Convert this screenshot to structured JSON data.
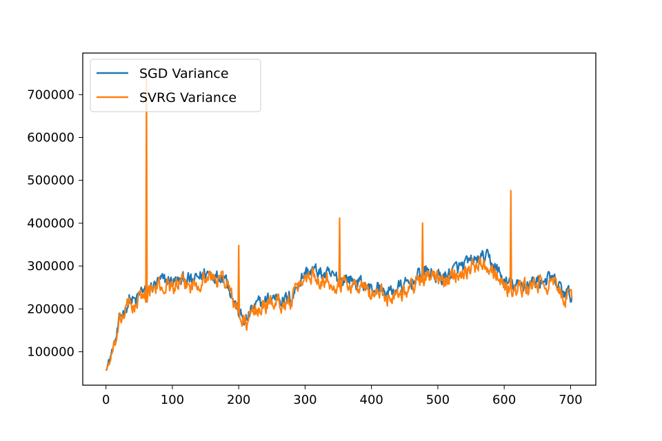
{
  "chart_data": {
    "type": "line",
    "title": "",
    "xlabel": "",
    "ylabel": "",
    "xlim": [
      -35,
      738
    ],
    "ylim": [
      22000,
      797000
    ],
    "xticks": [
      0,
      100,
      200,
      300,
      400,
      500,
      600,
      700
    ],
    "xtick_labels": [
      "0",
      "100",
      "200",
      "300",
      "400",
      "500",
      "600",
      "700"
    ],
    "yticks": [
      100000,
      200000,
      300000,
      400000,
      500000,
      600000,
      700000
    ],
    "ytick_labels": [
      "100000",
      "200000",
      "300000",
      "400000",
      "500000",
      "600000",
      "700000"
    ],
    "legend_position": "upper-left",
    "series": [
      {
        "name": "SGD Variance",
        "color": "#1f77b4",
        "anchors": [
          [
            0,
            62000
          ],
          [
            5,
            80000
          ],
          [
            10,
            105000
          ],
          [
            15,
            130000
          ],
          [
            20,
            170000
          ],
          [
            25,
            190000
          ],
          [
            30,
            205000
          ],
          [
            35,
            222000
          ],
          [
            40,
            220000
          ],
          [
            45,
            215000
          ],
          [
            50,
            232000
          ],
          [
            55,
            245000
          ],
          [
            62,
            240000
          ],
          [
            70,
            252000
          ],
          [
            80,
            262000
          ],
          [
            90,
            265000
          ],
          [
            100,
            266000
          ],
          [
            110,
            262000
          ],
          [
            120,
            270000
          ],
          [
            130,
            262000
          ],
          [
            140,
            275000
          ],
          [
            150,
            285000
          ],
          [
            160,
            282000
          ],
          [
            170,
            280000
          ],
          [
            178,
            282000
          ],
          [
            185,
            258000
          ],
          [
            190,
            232000
          ],
          [
            195,
            210000
          ],
          [
            200,
            192000
          ],
          [
            205,
            178000
          ],
          [
            212,
            172000
          ],
          [
            220,
            198000
          ],
          [
            230,
            210000
          ],
          [
            240,
            218000
          ],
          [
            250,
            225000
          ],
          [
            260,
            230000
          ],
          [
            270,
            220000
          ],
          [
            280,
            228000
          ],
          [
            290,
            260000
          ],
          [
            300,
            285000
          ],
          [
            310,
            290000
          ],
          [
            320,
            285000
          ],
          [
            330,
            278000
          ],
          [
            340,
            275000
          ],
          [
            350,
            270000
          ],
          [
            360,
            272000
          ],
          [
            370,
            268000
          ],
          [
            380,
            262000
          ],
          [
            390,
            255000
          ],
          [
            400,
            245000
          ],
          [
            410,
            250000
          ],
          [
            420,
            238000
          ],
          [
            430,
            240000
          ],
          [
            440,
            250000
          ],
          [
            450,
            252000
          ],
          [
            460,
            262000
          ],
          [
            470,
            275000
          ],
          [
            480,
            288000
          ],
          [
            490,
            283000
          ],
          [
            500,
            275000
          ],
          [
            510,
            273000
          ],
          [
            520,
            285000
          ],
          [
            530,
            295000
          ],
          [
            540,
            300000
          ],
          [
            550,
            308000
          ],
          [
            560,
            315000
          ],
          [
            570,
            320000
          ],
          [
            580,
            310000
          ],
          [
            590,
            290000
          ],
          [
            600,
            262000
          ],
          [
            610,
            255000
          ],
          [
            620,
            252000
          ],
          [
            630,
            258000
          ],
          [
            640,
            262000
          ],
          [
            650,
            265000
          ],
          [
            660,
            268000
          ],
          [
            670,
            270000
          ],
          [
            680,
            255000
          ],
          [
            690,
            238000
          ],
          [
            700,
            232000
          ]
        ],
        "noise_amplitude": 22000,
        "spikes": []
      },
      {
        "name": "SVRG Variance",
        "color": "#ff7f0e",
        "anchors": [
          [
            0,
            58000
          ],
          [
            5,
            75000
          ],
          [
            10,
            100000
          ],
          [
            15,
            122000
          ],
          [
            20,
            160000
          ],
          [
            25,
            182000
          ],
          [
            30,
            200000
          ],
          [
            35,
            212000
          ],
          [
            40,
            210000
          ],
          [
            45,
            205000
          ],
          [
            50,
            220000
          ],
          [
            55,
            232000
          ],
          [
            62,
            232000
          ],
          [
            70,
            242000
          ],
          [
            80,
            250000
          ],
          [
            90,
            255000
          ],
          [
            100,
            255000
          ],
          [
            110,
            252000
          ],
          [
            120,
            258000
          ],
          [
            130,
            252000
          ],
          [
            140,
            265000
          ],
          [
            150,
            275000
          ],
          [
            160,
            272000
          ],
          [
            170,
            270000
          ],
          [
            178,
            272000
          ],
          [
            185,
            250000
          ],
          [
            190,
            225000
          ],
          [
            195,
            205000
          ],
          [
            200,
            186000
          ],
          [
            205,
            172000
          ],
          [
            212,
            165000
          ],
          [
            220,
            190000
          ],
          [
            230,
            200000
          ],
          [
            240,
            208000
          ],
          [
            250,
            215000
          ],
          [
            260,
            220000
          ],
          [
            270,
            210000
          ],
          [
            280,
            218000
          ],
          [
            290,
            250000
          ],
          [
            300,
            275000
          ],
          [
            310,
            280000
          ],
          [
            320,
            275000
          ],
          [
            330,
            268000
          ],
          [
            340,
            265000
          ],
          [
            350,
            260000
          ],
          [
            360,
            262000
          ],
          [
            370,
            258000
          ],
          [
            380,
            252000
          ],
          [
            390,
            245000
          ],
          [
            400,
            235000
          ],
          [
            410,
            240000
          ],
          [
            420,
            228000
          ],
          [
            430,
            230000
          ],
          [
            440,
            240000
          ],
          [
            450,
            242000
          ],
          [
            460,
            252000
          ],
          [
            470,
            265000
          ],
          [
            480,
            278000
          ],
          [
            490,
            273000
          ],
          [
            500,
            265000
          ],
          [
            510,
            263000
          ],
          [
            520,
            275000
          ],
          [
            530,
            285000
          ],
          [
            540,
            290000
          ],
          [
            550,
            298000
          ],
          [
            560,
            305000
          ],
          [
            570,
            310000
          ],
          [
            580,
            300000
          ],
          [
            590,
            280000
          ],
          [
            600,
            252000
          ],
          [
            610,
            245000
          ],
          [
            620,
            242000
          ],
          [
            630,
            248000
          ],
          [
            640,
            252000
          ],
          [
            650,
            255000
          ],
          [
            660,
            258000
          ],
          [
            670,
            260000
          ],
          [
            680,
            245000
          ],
          [
            690,
            228000
          ],
          [
            700,
            222000
          ]
        ],
        "noise_amplitude": 25000,
        "spikes": [
          [
            61,
            742000
          ],
          [
            200,
            348000
          ],
          [
            352,
            412000
          ],
          [
            477,
            400000
          ],
          [
            610,
            476000
          ]
        ]
      }
    ]
  }
}
